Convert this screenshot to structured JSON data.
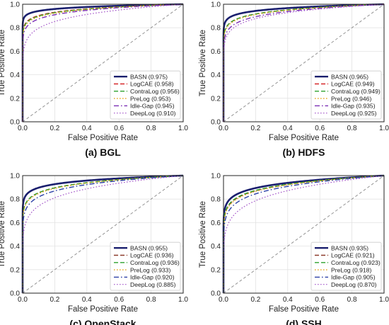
{
  "chart_data": [
    {
      "type": "line",
      "caption": "(a) BGL",
      "xlabel": "False Positive Rate",
      "ylabel": "True Positive Rate",
      "xlim": [
        0,
        1
      ],
      "ylim": [
        0,
        1
      ],
      "xticks": [
        "0.0",
        "0.2",
        "0.4",
        "0.6",
        "0.8",
        "1.0"
      ],
      "yticks": [
        "0.0",
        "0.2",
        "0.4",
        "0.6",
        "0.8",
        "1.0"
      ],
      "grid": true,
      "legend_position": "bottom-right",
      "diagonal": true,
      "series": [
        {
          "name": "BASN (0.975)",
          "auc": 0.975,
          "color": "#1a1f6e",
          "dash": "solid",
          "width": 2.6
        },
        {
          "name": "LogCAE (0.958)",
          "auc": 0.958,
          "color": "#d62728",
          "dash": "dashed",
          "width": 1.4
        },
        {
          "name": "ContraLog (0.956)",
          "auc": 0.956,
          "color": "#2ca02c",
          "dash": "dashed",
          "width": 1.4
        },
        {
          "name": "PreLog (0.953)",
          "auc": 0.953,
          "color": "#e6a118",
          "dash": "dotted",
          "width": 1.4
        },
        {
          "name": "Idle-Gap (0.945)",
          "auc": 0.945,
          "color": "#7b2fb5",
          "dash": "dashdot",
          "width": 1.4
        },
        {
          "name": "DeepLog (0.910)",
          "auc": 0.91,
          "color": "#a355c9",
          "dash": "dotted",
          "width": 1.2
        }
      ]
    },
    {
      "type": "line",
      "caption": "(b) HDFS",
      "xlabel": "False Positive Rate",
      "ylabel": "True Positive Rate",
      "xlim": [
        0,
        1
      ],
      "ylim": [
        0,
        1
      ],
      "xticks": [
        "0.0",
        "0.2",
        "0.4",
        "0.6",
        "0.8",
        "1.0"
      ],
      "yticks": [
        "0.0",
        "0.2",
        "0.4",
        "0.6",
        "0.8",
        "1.0"
      ],
      "grid": true,
      "legend_position": "bottom-right",
      "diagonal": true,
      "series": [
        {
          "name": "BASN (0.965)",
          "auc": 0.965,
          "color": "#1a1f6e",
          "dash": "solid",
          "width": 2.6
        },
        {
          "name": "LogCAE (0.949)",
          "auc": 0.949,
          "color": "#d62728",
          "dash": "dashed",
          "width": 1.4
        },
        {
          "name": "ContraLog (0.949)",
          "auc": 0.949,
          "color": "#2ca02c",
          "dash": "dashed",
          "width": 1.4
        },
        {
          "name": "PreLog (0.946)",
          "auc": 0.946,
          "color": "#e6a118",
          "dash": "dotted",
          "width": 1.4
        },
        {
          "name": "Idle-Gap (0.935)",
          "auc": 0.935,
          "color": "#7b2fb5",
          "dash": "dashdot",
          "width": 1.4
        },
        {
          "name": "DeepLog (0.925)",
          "auc": 0.925,
          "color": "#a355c9",
          "dash": "dotted",
          "width": 1.2
        }
      ]
    },
    {
      "type": "line",
      "caption": "(c) OpenStack",
      "xlabel": "False Positive Rate",
      "ylabel": "True Positive Rate",
      "xlim": [
        0,
        1
      ],
      "ylim": [
        0,
        1
      ],
      "xticks": [
        "0.0",
        "0.2",
        "0.4",
        "0.6",
        "0.8",
        "1.0"
      ],
      "yticks": [
        "0.0",
        "0.2",
        "0.4",
        "0.6",
        "0.8",
        "1.0"
      ],
      "grid": true,
      "legend_position": "bottom-right",
      "diagonal": true,
      "series": [
        {
          "name": "BASN (0.955)",
          "auc": 0.955,
          "color": "#1a1f6e",
          "dash": "solid",
          "width": 2.6
        },
        {
          "name": "LogCAE (0.936)",
          "auc": 0.936,
          "color": "#8c3a2b",
          "dash": "dashed",
          "width": 1.4
        },
        {
          "name": "ContraLog (0.936)",
          "auc": 0.936,
          "color": "#2ca02c",
          "dash": "dashed",
          "width": 1.4
        },
        {
          "name": "PreLog (0.933)",
          "auc": 0.933,
          "color": "#e6a118",
          "dash": "dotted",
          "width": 1.4
        },
        {
          "name": "Idle-Gap (0.920)",
          "auc": 0.92,
          "color": "#2b3fa6",
          "dash": "dashdot",
          "width": 1.4
        },
        {
          "name": "DeepLog (0.885)",
          "auc": 0.885,
          "color": "#a355c9",
          "dash": "dotted",
          "width": 1.2
        }
      ]
    },
    {
      "type": "line",
      "caption": "(d) SSH",
      "xlabel": "False Positive Rate",
      "ylabel": "True Positive Rate",
      "xlim": [
        0,
        1
      ],
      "ylim": [
        0,
        1
      ],
      "xticks": [
        "0.0",
        "0.2",
        "0.4",
        "0.6",
        "0.8",
        "1.0"
      ],
      "yticks": [
        "0.0",
        "0.2",
        "0.4",
        "0.6",
        "0.8",
        "1.0"
      ],
      "grid": true,
      "legend_position": "bottom-right",
      "diagonal": true,
      "series": [
        {
          "name": "BASN (0.935)",
          "auc": 0.935,
          "color": "#1a1f6e",
          "dash": "solid",
          "width": 2.6
        },
        {
          "name": "LogCAE (0.921)",
          "auc": 0.921,
          "color": "#8c3a2b",
          "dash": "dashed",
          "width": 1.4
        },
        {
          "name": "ContraLog (0.923)",
          "auc": 0.923,
          "color": "#2ca02c",
          "dash": "dashed",
          "width": 1.4
        },
        {
          "name": "PreLog (0.918)",
          "auc": 0.918,
          "color": "#e6a118",
          "dash": "dotted",
          "width": 1.4
        },
        {
          "name": "Idle-Gap (0.905)",
          "auc": 0.905,
          "color": "#2b3fa6",
          "dash": "dashdot",
          "width": 1.4
        },
        {
          "name": "DeepLog (0.870)",
          "auc": 0.87,
          "color": "#a355c9",
          "dash": "dotted",
          "width": 1.2
        }
      ]
    }
  ]
}
